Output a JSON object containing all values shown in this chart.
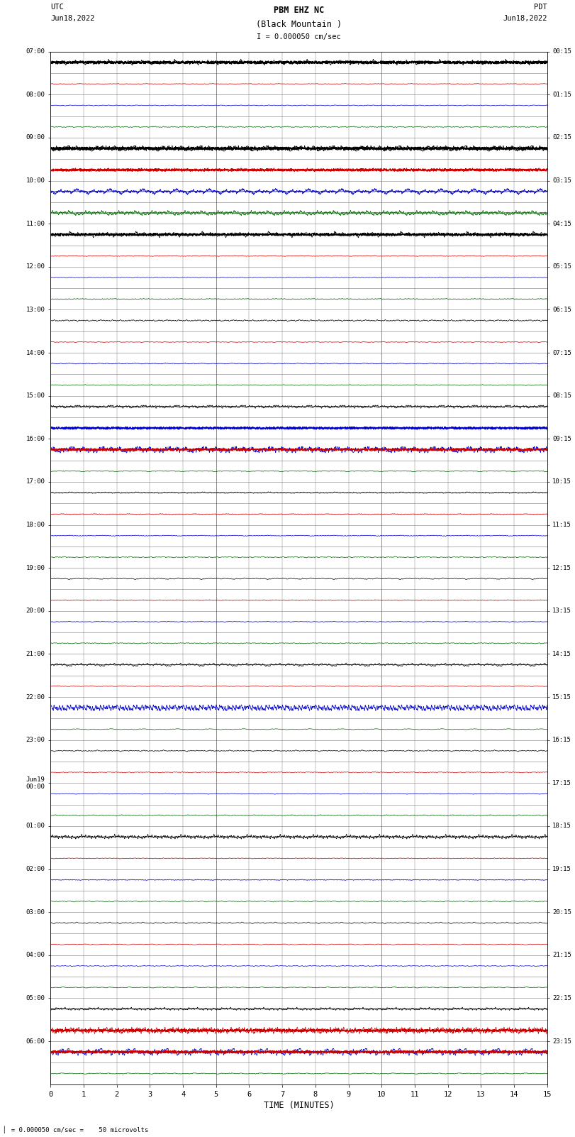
{
  "title_line1": "PBM EHZ NC",
  "title_line2": "(Black Mountain )",
  "scale_label": "I = 0.000050 cm/sec",
  "left_label_top": "UTC",
  "left_label_date": "Jun18,2022",
  "right_label_top": "PDT",
  "right_label_date": "Jun18,2022",
  "bottom_label": "TIME (MINUTES)",
  "footer_label": "= 0.000050 cm/sec =    50 microvolts",
  "xlabel_ticks": [
    0,
    1,
    2,
    3,
    4,
    5,
    6,
    7,
    8,
    9,
    10,
    11,
    12,
    13,
    14,
    15
  ],
  "left_times_even": [
    "07:00",
    "08:00",
    "09:00",
    "10:00",
    "11:00",
    "12:00",
    "13:00",
    "14:00",
    "15:00",
    "16:00",
    "17:00",
    "18:00",
    "19:00",
    "20:00",
    "21:00",
    "22:00",
    "23:00",
    "Jun19\n00:00",
    "01:00",
    "02:00",
    "03:00",
    "04:00",
    "05:00",
    "06:00"
  ],
  "right_times_even": [
    "00:15",
    "01:15",
    "02:15",
    "03:15",
    "04:15",
    "05:15",
    "06:15",
    "07:15",
    "08:15",
    "09:15",
    "10:15",
    "11:15",
    "12:15",
    "13:15",
    "14:15",
    "15:15",
    "16:15",
    "17:15",
    "18:15",
    "19:15",
    "20:15",
    "21:15",
    "22:15",
    "23:15"
  ],
  "num_rows": 48,
  "minutes_per_row": 15,
  "bg_color": "#ffffff",
  "fig_width": 8.5,
  "fig_height": 16.13,
  "row_colors": [
    "#000000",
    "#cc0000",
    "#0000cc",
    "#006600",
    "#000000",
    "#cc0000",
    "#0000cc",
    "#006600",
    "#000000",
    "#cc0000",
    "#0000cc",
    "#006600",
    "#000000",
    "#cc0000",
    "#0000cc",
    "#006600",
    "#000000",
    "#cc0000",
    "#0000cc",
    "#006600",
    "#000000",
    "#cc0000",
    "#0000cc",
    "#006600",
    "#000000",
    "#cc0000",
    "#0000cc",
    "#006600",
    "#000000",
    "#cc0000",
    "#0000cc",
    "#006600",
    "#000000",
    "#cc0000",
    "#0000cc",
    "#006600",
    "#000000",
    "#cc0000",
    "#0000cc",
    "#006600",
    "#000000",
    "#cc0000",
    "#0000cc",
    "#006600",
    "#000000",
    "#cc0000",
    "#0000cc",
    "#006600"
  ],
  "special_rows": {
    "0": {
      "amplitude": 2.5,
      "clipped": false
    },
    "4": {
      "amplitude": 3.0,
      "clipped": true
    },
    "5": {
      "amplitude": 1.5,
      "clipped": false
    },
    "8": {
      "amplitude": 2.5,
      "clipped": false
    },
    "17": {
      "amplitude": 0.5,
      "clipped": false
    },
    "18": {
      "amplitude": 3.5,
      "clipped": true
    },
    "28": {
      "amplitude": 0.4,
      "clipped": false
    },
    "29": {
      "amplitude": 0.3,
      "clipped": false
    },
    "30": {
      "amplitude": 3.2,
      "clipped": true
    },
    "44": {
      "amplitude": 0.3,
      "clipped": false
    },
    "45": {
      "amplitude": 3.5,
      "clipped": true
    },
    "46": {
      "amplitude": 3.8,
      "clipped": true
    }
  }
}
